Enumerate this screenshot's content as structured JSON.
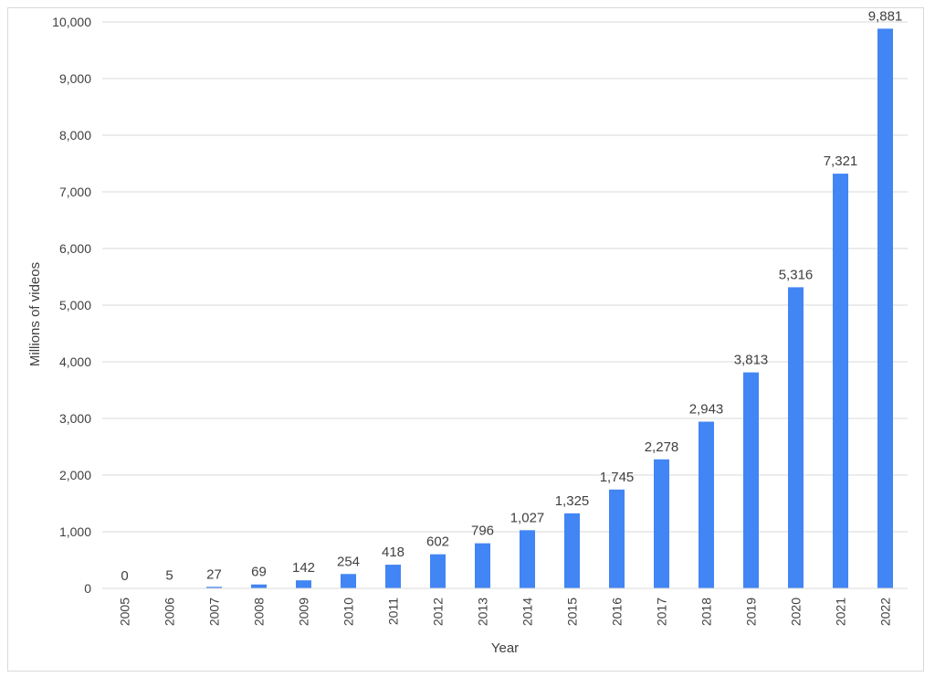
{
  "chart_data": {
    "type": "bar",
    "title": "",
    "xlabel": "Year",
    "ylabel": "Millions of videos",
    "categories": [
      "2005",
      "2006",
      "2007",
      "2008",
      "2009",
      "2010",
      "2011",
      "2012",
      "2013",
      "2014",
      "2015",
      "2016",
      "2017",
      "2018",
      "2019",
      "2020",
      "2021",
      "2022"
    ],
    "values": [
      0,
      5,
      27,
      69,
      142,
      254,
      418,
      602,
      796,
      1027,
      1325,
      1745,
      2278,
      2943,
      3813,
      5316,
      7321,
      9881
    ],
    "data_labels": [
      "0",
      "5",
      "27",
      "69",
      "142",
      "254",
      "418",
      "602",
      "796",
      "1,027",
      "1,325",
      "1,745",
      "2,278",
      "2,943",
      "3,813",
      "5,316",
      "7,321",
      "9,881"
    ],
    "ylim": [
      0,
      10000
    ],
    "yticks": [
      0,
      1000,
      2000,
      3000,
      4000,
      5000,
      6000,
      7000,
      8000,
      9000,
      10000
    ],
    "ytick_labels": [
      "0",
      "1,000",
      "2,000",
      "3,000",
      "4,000",
      "5,000",
      "6,000",
      "7,000",
      "8,000",
      "9,000",
      "10,000"
    ],
    "grid": true,
    "legend": "none",
    "bar_color": "#4285f4",
    "gridline_color": "#d9d9d9",
    "text_color": "#404040"
  }
}
